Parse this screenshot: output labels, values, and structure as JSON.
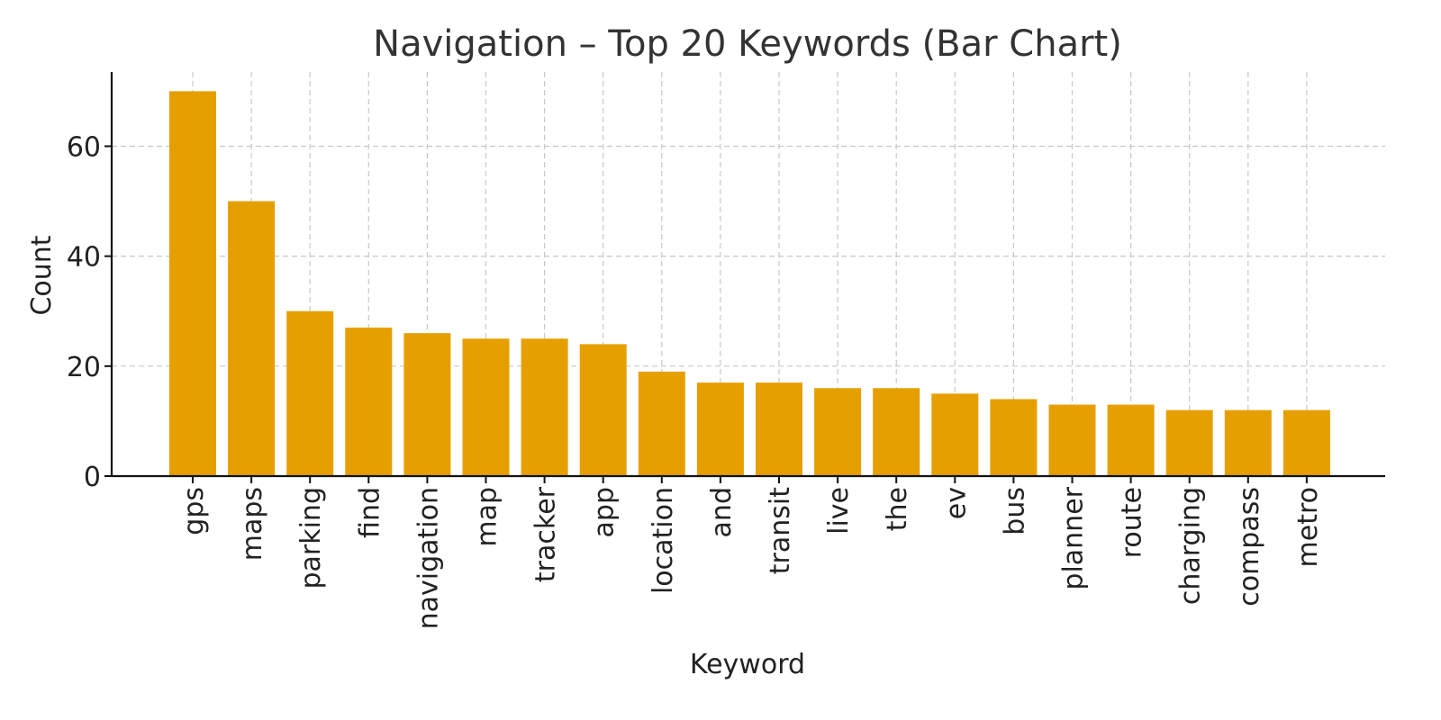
{
  "chart_data": {
    "type": "bar",
    "title": "Navigation – Top 20 Keywords (Bar Chart)",
    "xlabel": "Keyword",
    "ylabel": "Count",
    "categories": [
      "gps",
      "maps",
      "parking",
      "find",
      "navigation",
      "map",
      "tracker",
      "app",
      "location",
      "and",
      "transit",
      "live",
      "the",
      "ev",
      "bus",
      "planner",
      "route",
      "charging",
      "compass",
      "metro"
    ],
    "values": [
      70,
      50,
      30,
      27,
      26,
      25,
      25,
      24,
      19,
      17,
      17,
      16,
      16,
      15,
      14,
      13,
      13,
      12,
      12,
      12
    ],
    "ylim": [
      0,
      73.5
    ],
    "yticks": [
      0,
      20,
      40,
      60
    ],
    "grid": true,
    "bar_color": "#E69F00"
  }
}
